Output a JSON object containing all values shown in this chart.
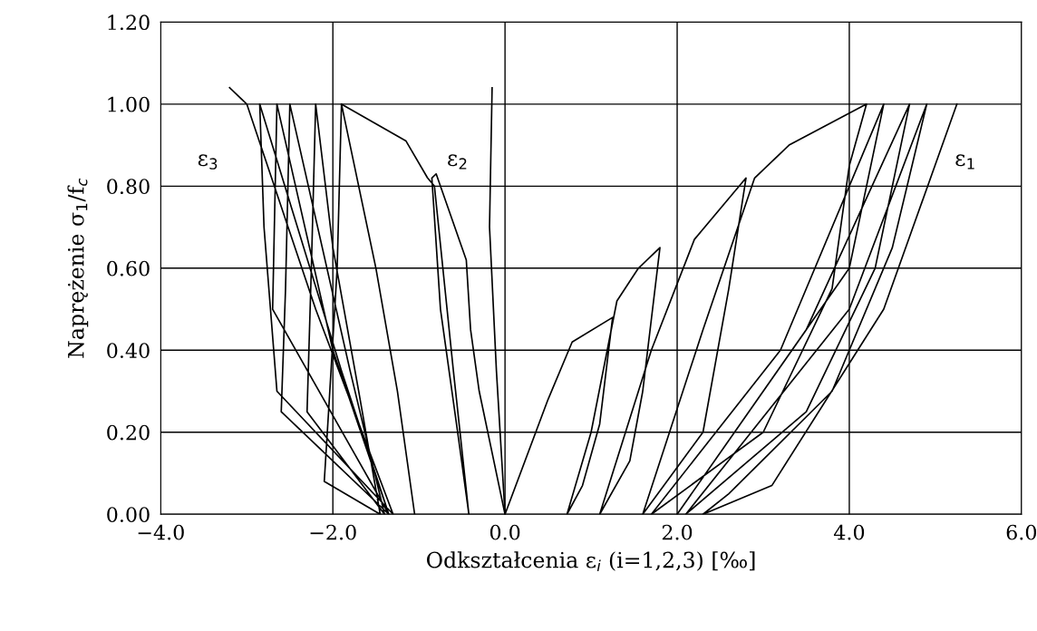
{
  "chart_data": {
    "type": "line",
    "xlabel": "Odkształcenia ε$_{i}$ (i=1,2,3) [‰]",
    "ylabel": "Naprężenie σ$_{1}$/f$_{c}$",
    "xlim": [
      -4,
      6
    ],
    "ylim": [
      0,
      1.2
    ],
    "xticks": [
      {
        "value": -4,
        "label": "−4.0"
      },
      {
        "value": -2,
        "label": "−2.0"
      },
      {
        "value": 0,
        "label": "0.0"
      },
      {
        "value": 2,
        "label": "2.0"
      },
      {
        "value": 4,
        "label": "4.0"
      },
      {
        "value": 6,
        "label": "6.0"
      }
    ],
    "yticks": [
      {
        "value": 0,
        "label": "0.00"
      },
      {
        "value": 0.2,
        "label": "0.20"
      },
      {
        "value": 0.4,
        "label": "0.40"
      },
      {
        "value": 0.6,
        "label": "0.60"
      },
      {
        "value": 0.8,
        "label": "0.80"
      },
      {
        "value": 1.0,
        "label": "1.00"
      },
      {
        "value": 1.2,
        "label": "1.20"
      }
    ],
    "grid": true,
    "marker": "none",
    "line_style": "solid",
    "annotations": [
      "ε$_{3}$",
      "ε$_{2}$",
      "ε$_{1}$"
    ],
    "series": [
      {
        "color": "#000000",
        "x": [
          0,
          0.5,
          0.78,
          1.25,
          1.1,
          0.9,
          0.72,
          1.0,
          1.3,
          1.55,
          1.8,
          1.6,
          1.45,
          1.1,
          1.7,
          2.2,
          2.8,
          2.6,
          2.3,
          1.6,
          2.3,
          2.9,
          3.3,
          4.2,
          4.0,
          3.8,
          3.0,
          1.7,
          3.2,
          4.4,
          4.0,
          2.0,
          3.5,
          4.7,
          4.3,
          3.5,
          2.1,
          4.0,
          4.9,
          4.5,
          3.8,
          2.6,
          2.3,
          3.1,
          4.4,
          5.25
        ],
        "values": [
          0,
          0.28,
          0.42,
          0.48,
          0.22,
          0.07,
          0,
          0.2,
          0.52,
          0.6,
          0.65,
          0.3,
          0.13,
          0,
          0.4,
          0.67,
          0.82,
          0.55,
          0.2,
          0,
          0.45,
          0.82,
          0.9,
          1.0,
          0.85,
          0.55,
          0.2,
          0,
          0.4,
          1.0,
          0.6,
          0,
          0.45,
          1.0,
          0.6,
          0.25,
          0,
          0.5,
          1.0,
          0.65,
          0.3,
          0.05,
          0,
          0.07,
          0.5,
          1.0
        ]
      },
      {
        "color": "#000000",
        "x": [
          0,
          -0.1,
          -0.18,
          -0.15
        ],
        "values": [
          0,
          0.35,
          0.7,
          1.04
        ]
      },
      {
        "color": "#000000",
        "x": [
          0,
          -0.3,
          -0.4,
          -0.45,
          -0.8,
          -0.85,
          -0.75,
          -0.55,
          -0.42,
          -0.6,
          -0.82,
          -0.9,
          -1.15,
          -1.9
        ],
        "values": [
          0,
          0.3,
          0.45,
          0.62,
          0.83,
          0.82,
          0.5,
          0.2,
          0,
          0.35,
          0.8,
          0.82,
          0.91,
          1.0
        ]
      },
      {
        "color": "#000000",
        "x": [
          -1.05,
          -1.25,
          -1.5,
          -1.9,
          -1.95,
          -2.05,
          -2.1,
          -1.45,
          -1.7,
          -2.0,
          -2.2,
          -2.25,
          -2.3,
          -1.4,
          -1.8,
          -2.5,
          -2.55,
          -2.6,
          -1.35,
          -2.0,
          -2.65,
          -2.7,
          -1.35,
          -1.9,
          -2.85,
          -2.8,
          -2.65,
          -1.3,
          -2.2,
          -3.0,
          -3.2
        ],
        "values": [
          0,
          0.3,
          0.6,
          1.0,
          0.6,
          0.25,
          0.08,
          0,
          0.3,
          0.65,
          1.0,
          0.6,
          0.25,
          0,
          0.35,
          1.0,
          0.55,
          0.25,
          0,
          0.4,
          1.0,
          0.5,
          0,
          0.35,
          1.0,
          0.7,
          0.3,
          0,
          0.5,
          1.0,
          1.04
        ]
      }
    ]
  }
}
